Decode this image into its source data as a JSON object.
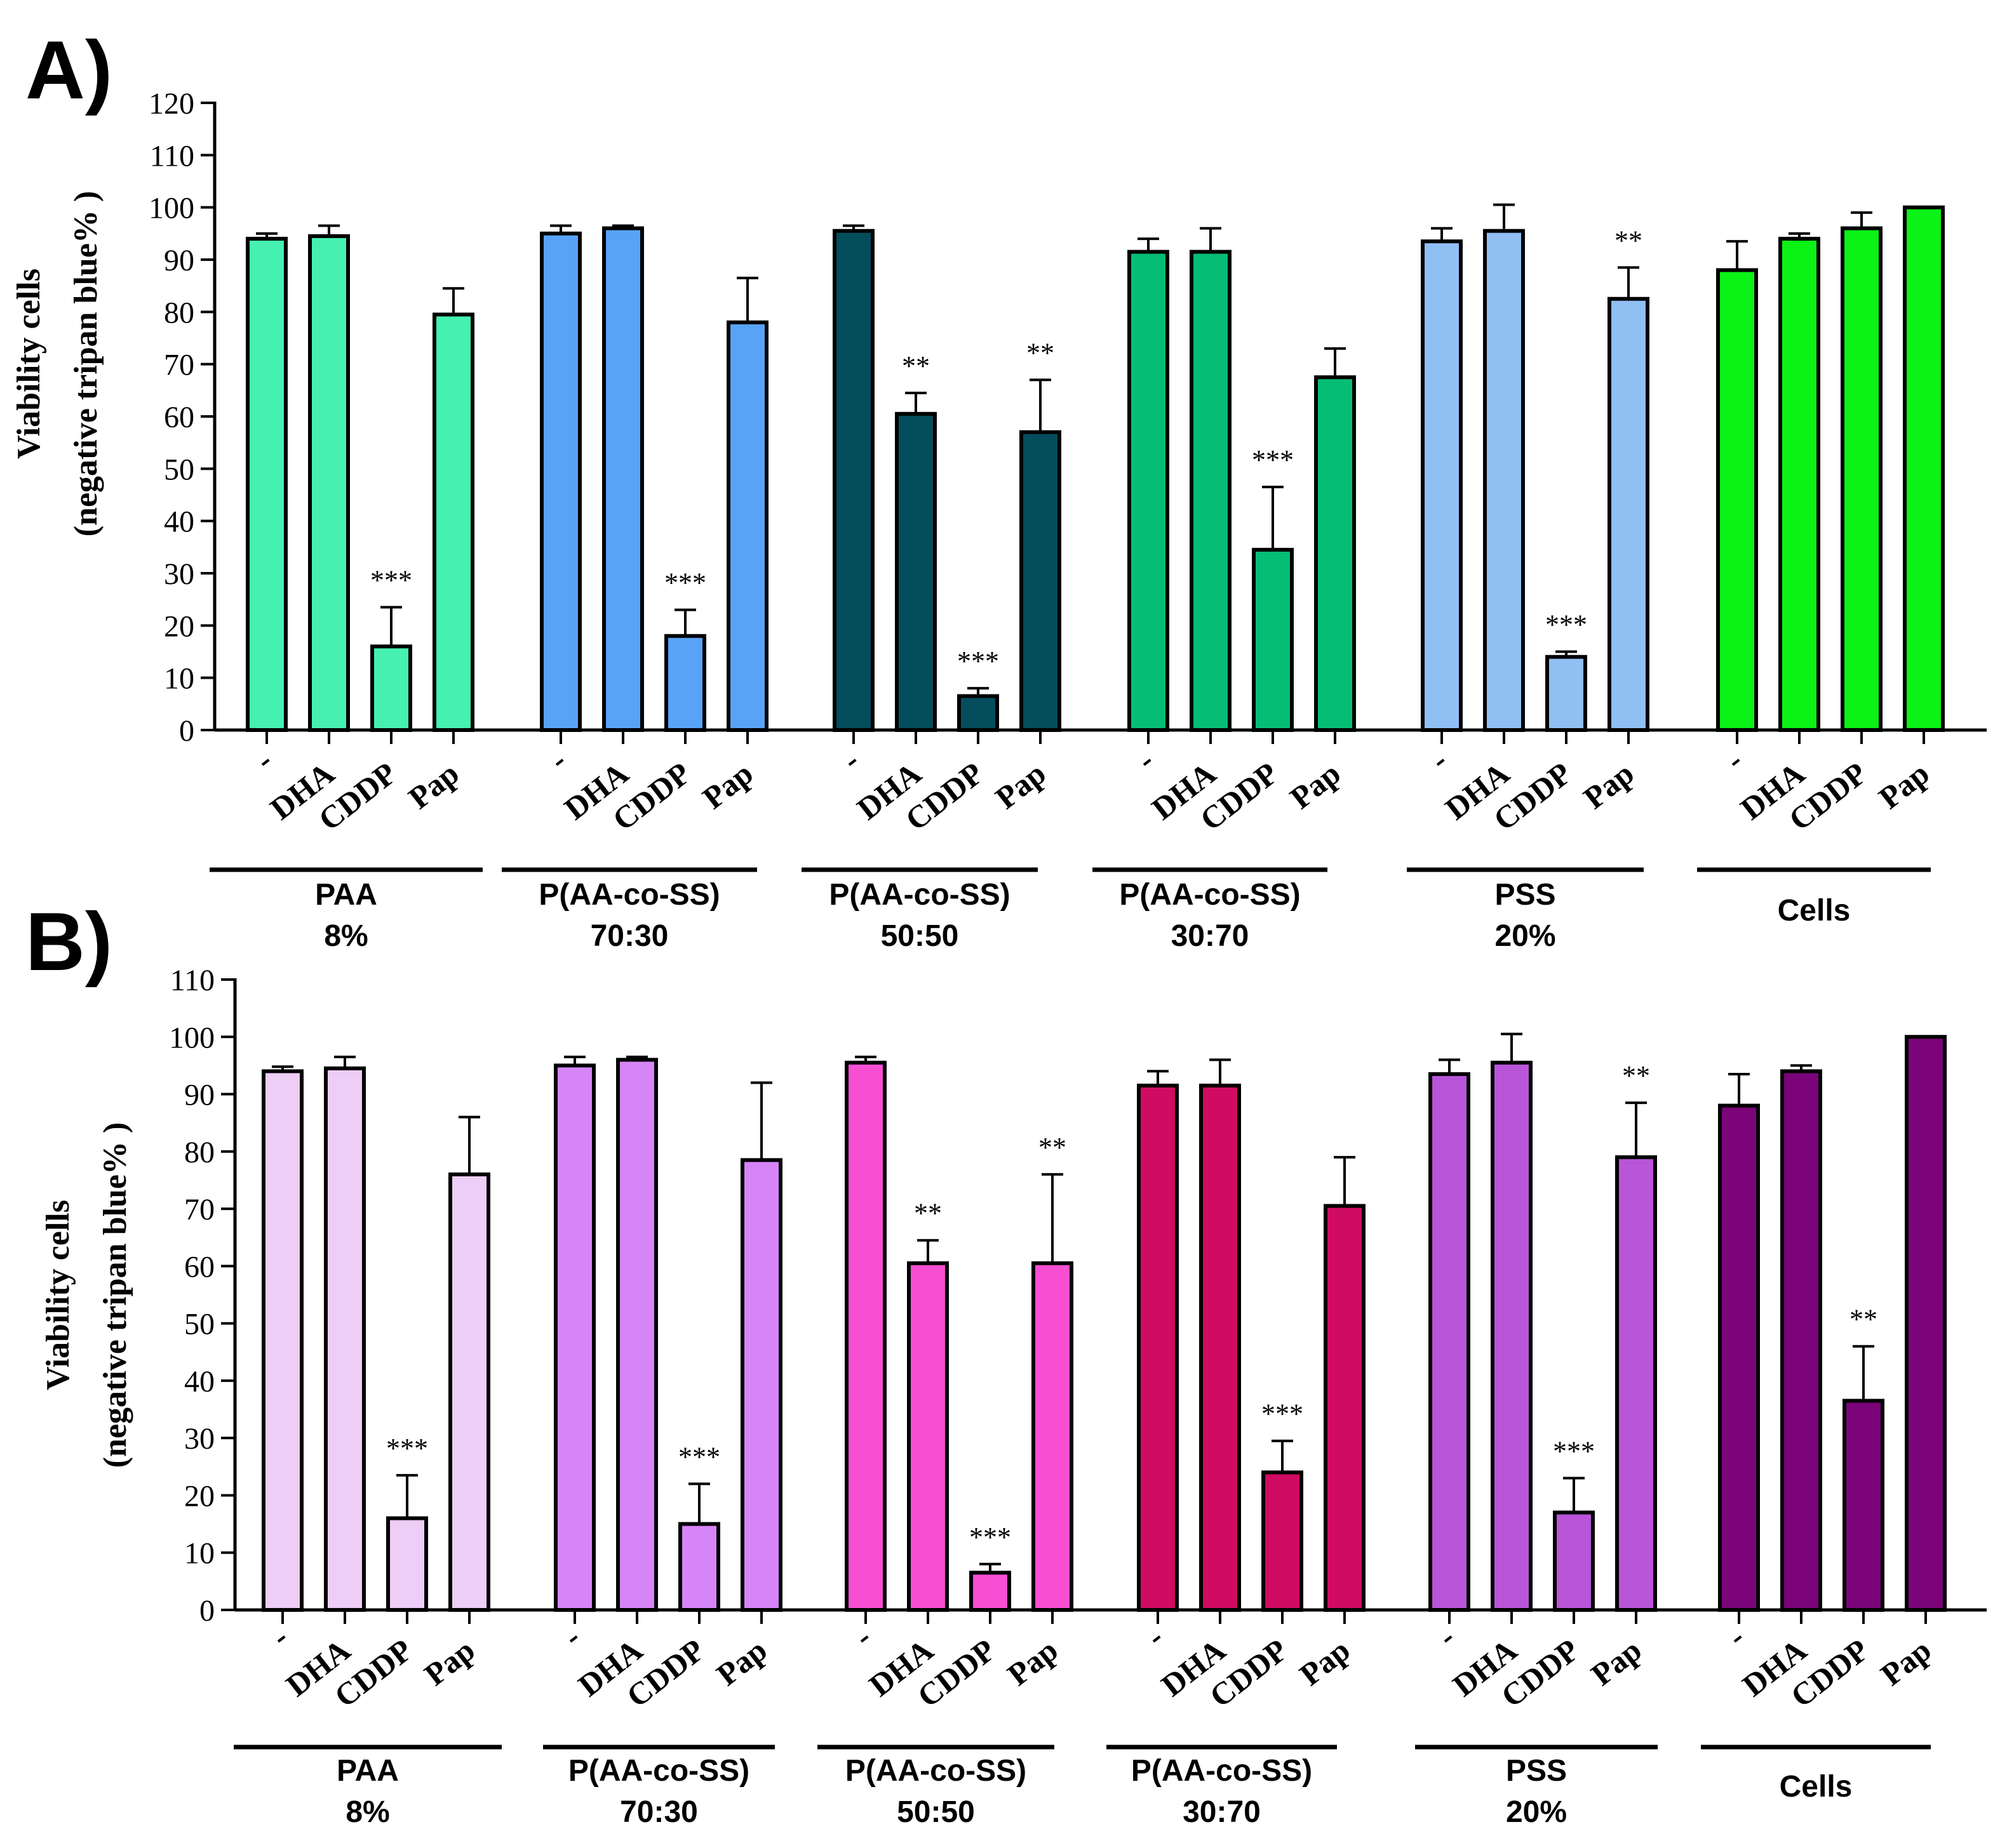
{
  "figure": {
    "panels": [
      {
        "label": "A)"
      },
      {
        "label": "B)"
      }
    ]
  },
  "chart_data": [
    {
      "type": "bar",
      "panel": "A)",
      "ylabel_line1": "Viability cells",
      "ylabel_line2": "(negative tripan blue% )",
      "ylim": [
        0,
        120
      ],
      "yticks": [
        "0",
        "10",
        "20",
        "30",
        "40",
        "50",
        "60",
        "70",
        "80",
        "90",
        "100",
        "110",
        "120"
      ],
      "categories": [
        "-",
        "DHA",
        "CDDP",
        "Pap"
      ],
      "groups": [
        {
          "name_line1": "PAA",
          "name_line2": "8%",
          "color": "#45f0b0",
          "values": [
            94,
            94.5,
            16,
            79.5
          ],
          "errors": [
            1,
            2,
            7.5,
            5
          ],
          "annotations": [
            "",
            "",
            "***",
            ""
          ]
        },
        {
          "name_line1": "P(AA-co-SS)",
          "name_line2": "70:30",
          "color": "#58a3f7",
          "values": [
            95,
            96,
            18,
            78
          ],
          "errors": [
            1.5,
            0.5,
            5,
            8.5
          ],
          "annotations": [
            "",
            "",
            "***",
            ""
          ]
        },
        {
          "name_line1": "P(AA-co-SS)",
          "name_line2": "50:50",
          "color": "#044d5c",
          "values": [
            95.5,
            60.5,
            6.5,
            57
          ],
          "errors": [
            1,
            4,
            1.5,
            10
          ],
          "annotations": [
            "",
            "**",
            "***",
            "**"
          ]
        },
        {
          "name_line1": "P(AA-co-SS)",
          "name_line2": "30:70",
          "color": "#06bd75",
          "values": [
            91.5,
            91.5,
            34.5,
            67.5
          ],
          "errors": [
            2.5,
            4.5,
            12,
            5.5
          ],
          "annotations": [
            "",
            "",
            "***",
            ""
          ]
        },
        {
          "name_line1": "PSS",
          "name_line2": "20%",
          "color": "#90bff4",
          "values": [
            93.5,
            95.5,
            14,
            82.5
          ],
          "errors": [
            2.5,
            5,
            1,
            6
          ],
          "annotations": [
            "",
            "",
            "***",
            "**"
          ]
        },
        {
          "name_line1": "Cells",
          "name_line2": "",
          "color": "#0af216",
          "values": [
            88,
            94,
            96,
            100
          ],
          "errors": [
            5.5,
            1,
            3,
            0
          ],
          "annotations": [
            "",
            "",
            "",
            ""
          ]
        }
      ]
    },
    {
      "type": "bar",
      "panel": "B)",
      "ylabel_line1": "Viability cells",
      "ylabel_line2": "(negative tripan blue% )",
      "ylim": [
        0,
        110
      ],
      "yticks": [
        "0",
        "10",
        "20",
        "30",
        "40",
        "50",
        "60",
        "70",
        "80",
        "90",
        "100",
        "110"
      ],
      "categories": [
        "-",
        "DHA",
        "CDDP",
        "Pap"
      ],
      "groups": [
        {
          "name_line1": "PAA",
          "name_line2": "8%",
          "color": "#eecdf6",
          "values": [
            94,
            94.5,
            16,
            76
          ],
          "errors": [
            0.8,
            2,
            7.5,
            10
          ],
          "annotations": [
            "",
            "",
            "***",
            ""
          ]
        },
        {
          "name_line1": "P(AA-co-SS)",
          "name_line2": "70:30",
          "color": "#d685f7",
          "values": [
            95,
            96,
            15,
            78.5
          ],
          "errors": [
            1.5,
            0.5,
            7,
            13.5
          ],
          "annotations": [
            "",
            "",
            "***",
            ""
          ]
        },
        {
          "name_line1": "P(AA-co-SS)",
          "name_line2": "50:50",
          "color": "#f74fd2",
          "values": [
            95.5,
            60.5,
            6.5,
            60.5
          ],
          "errors": [
            1,
            4,
            1.5,
            15.5
          ],
          "annotations": [
            "",
            "**",
            "***",
            "**"
          ]
        },
        {
          "name_line1": "P(AA-co-SS)",
          "name_line2": "30:70",
          "color": "#cf0b62",
          "values": [
            91.5,
            91.5,
            24,
            70.5
          ],
          "errors": [
            2.5,
            4.5,
            5.5,
            8.5
          ],
          "annotations": [
            "",
            "",
            "***",
            ""
          ]
        },
        {
          "name_line1": "PSS",
          "name_line2": "20%",
          "color": "#b955d8",
          "values": [
            93.5,
            95.5,
            17,
            79
          ],
          "errors": [
            2.5,
            5,
            6,
            9.5
          ],
          "annotations": [
            "",
            "",
            "***",
            "**"
          ]
        },
        {
          "name_line1": "Cells",
          "name_line2": "",
          "color": "#7a0478",
          "values": [
            88,
            94,
            36.5,
            100
          ],
          "errors": [
            5.5,
            1,
            9.5,
            0
          ],
          "annotations": [
            "",
            "",
            "**",
            ""
          ]
        }
      ]
    }
  ]
}
